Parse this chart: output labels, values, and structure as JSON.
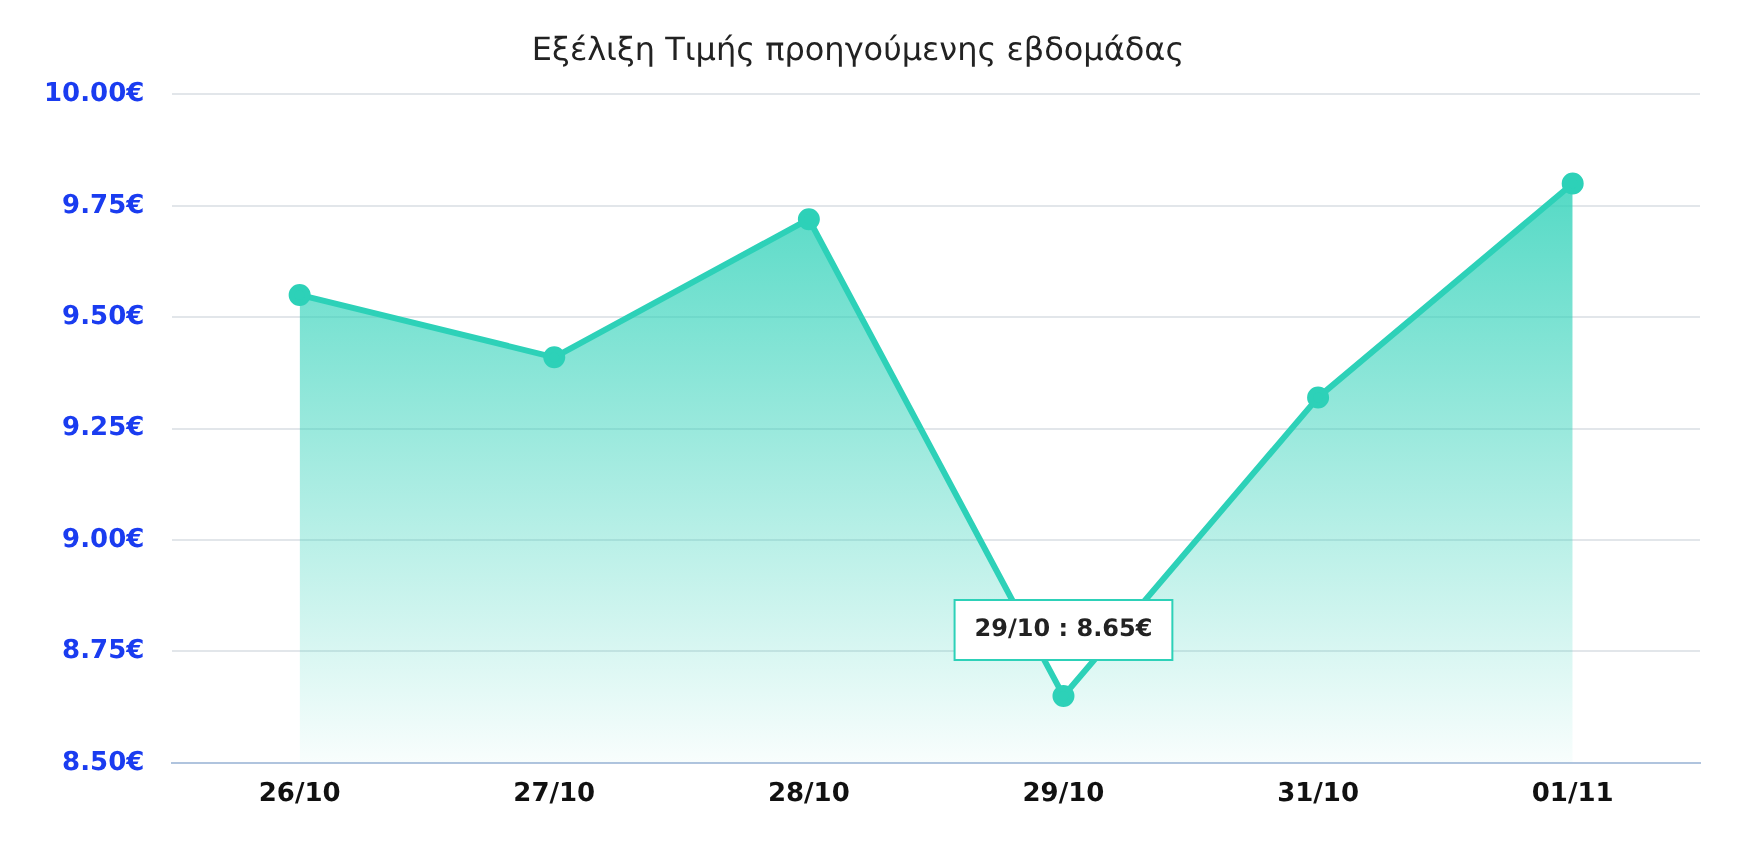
{
  "chart_data": {
    "type": "area",
    "title": "Εξέλιξη Τιμής προηγούμενης εβδομάδας",
    "categories": [
      "26/10",
      "27/10",
      "28/10",
      "29/10",
      "31/10",
      "01/11"
    ],
    "values": [
      9.55,
      9.41,
      9.72,
      8.65,
      9.32,
      9.8
    ],
    "color": "#2dd1b8",
    "ylim": [
      8.5,
      10
    ],
    "yticks": [
      {
        "value": 8.5,
        "label": "8.50€"
      },
      {
        "value": 8.75,
        "label": "8.75€"
      },
      {
        "value": 9,
        "label": "9.00€"
      },
      {
        "value": 9.25,
        "label": "9.25€"
      },
      {
        "value": 9.5,
        "label": "9.50€"
      },
      {
        "value": 9.75,
        "label": "9.75€"
      },
      {
        "value": 10,
        "label": "10.00€"
      }
    ],
    "grid": "y",
    "marker": "circle",
    "line_style": "solid",
    "annotations": [
      {
        "text": "29/10 : 8.65€",
        "x": "29/10",
        "y": 8.65
      }
    ]
  }
}
